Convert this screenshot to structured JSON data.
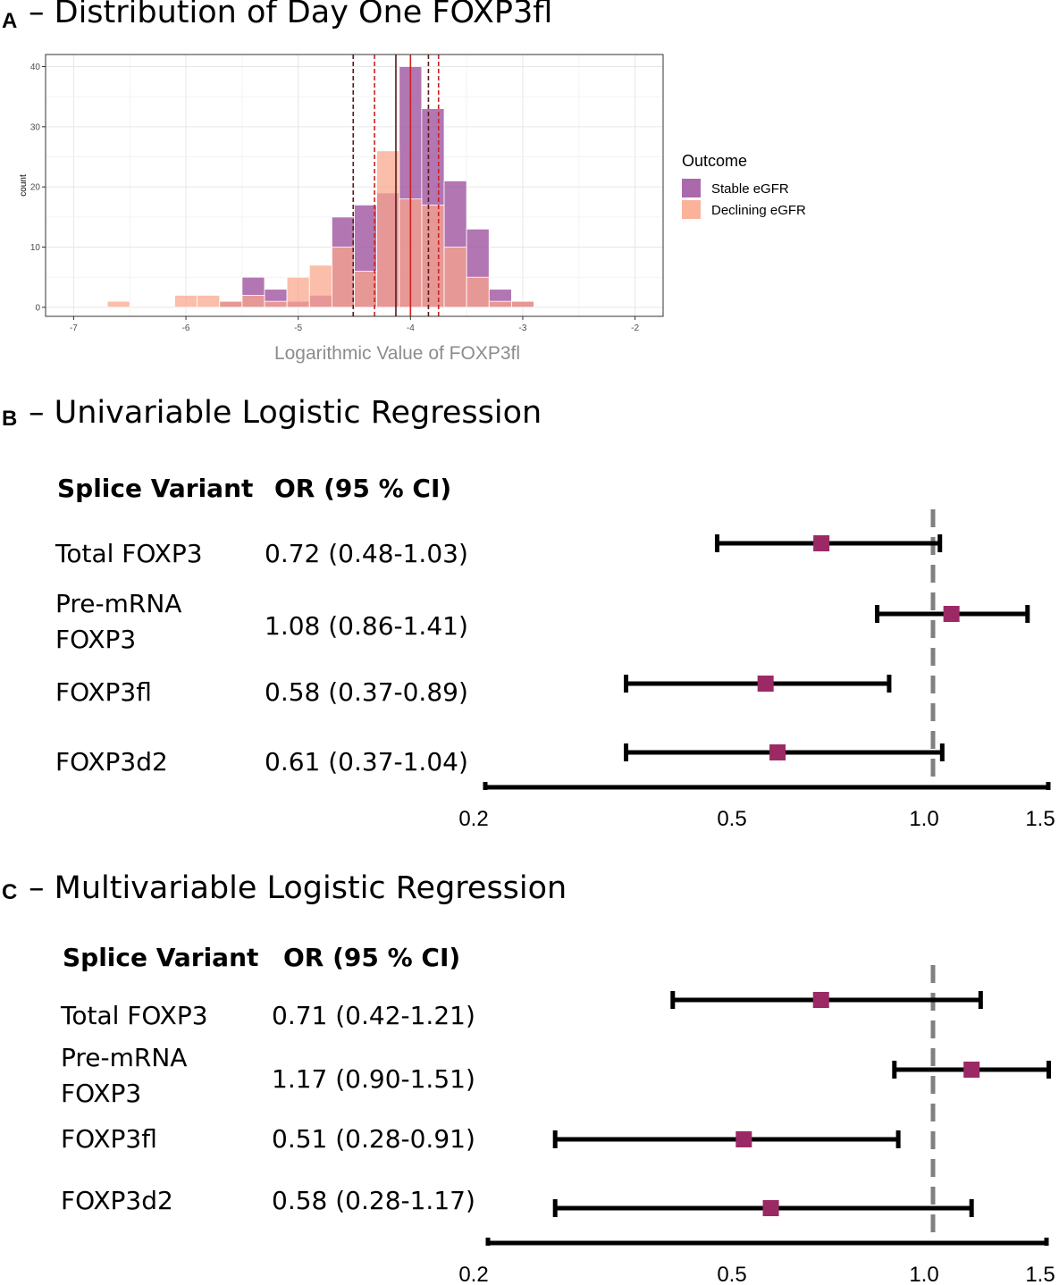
{
  "panel_a": {
    "letter": "A",
    "title": "– Distribution of Day One FOXP3fl"
  },
  "panel_b": {
    "letter": "B",
    "title": "– Univariable Logistic Regression",
    "header_variant": "Splice Variant",
    "header_or": "OR (95 % CI)"
  },
  "panel_c": {
    "letter": "C",
    "title": "– Multivariable Logistic Regression",
    "header_variant": "Splice Variant",
    "header_or": "OR (95 % CI)"
  },
  "colors": {
    "stable": "#9c4f9c",
    "declining": "#f9a58a",
    "overlap": "#e07a6f",
    "marker": "#9b2a64",
    "ref_line": "#808080"
  },
  "chart_data": [
    {
      "type": "histogram",
      "title": "– Distribution of Day One FOXP3fl",
      "xlabel": "Logarithmic Value of FOXP3fl",
      "ylabel": "count",
      "xlim": [
        -7.25,
        -1.75
      ],
      "ylim": [
        -1.5,
        42
      ],
      "xticks": [
        -7,
        -6,
        -5,
        -4,
        -3,
        -2
      ],
      "xtick_labels": [
        "-7",
        "-6",
        "-5",
        "-4",
        "-3",
        "-2"
      ],
      "yticks": [
        0,
        10,
        20,
        30,
        40
      ],
      "ytick_labels": [
        "0",
        "10",
        "20",
        "30",
        "40"
      ],
      "grid": true,
      "legend": {
        "title": "Outcome",
        "position": "right",
        "entries": [
          "Stable eGFR",
          "Declining eGFR"
        ]
      },
      "bin_width": 0.2,
      "bin_starts": [
        -6.7,
        -6.5,
        -6.3,
        -6.1,
        -5.9,
        -5.7,
        -5.5,
        -5.3,
        -5.1,
        -4.9,
        -4.7,
        -4.5,
        -4.3,
        -4.1,
        -3.9,
        -3.7,
        -3.5,
        -3.3,
        -3.1
      ],
      "series": [
        {
          "name": "Stable eGFR",
          "values": [
            0,
            0,
            0,
            0,
            0,
            1,
            5,
            3,
            1,
            2,
            15,
            17,
            19,
            40,
            33,
            21,
            13,
            3,
            1
          ]
        },
        {
          "name": "Declining eGFR",
          "values": [
            1,
            0,
            0,
            2,
            2,
            1,
            2,
            1,
            5,
            7,
            10,
            6,
            26,
            18,
            17,
            10,
            5,
            1,
            1
          ]
        }
      ],
      "vlines": [
        {
          "x": -4.51,
          "style": "dashed",
          "color": "#5a1a1a"
        },
        {
          "x": -4.32,
          "style": "dashed",
          "color": "#cc2222"
        },
        {
          "x": -4.13,
          "style": "solid",
          "color": "#5a1a1a"
        },
        {
          "x": -4.0,
          "style": "solid",
          "color": "#cc2222"
        },
        {
          "x": -3.84,
          "style": "dashed",
          "color": "#5a1a1a"
        },
        {
          "x": -3.75,
          "style": "dashed",
          "color": "#cc2222"
        }
      ]
    },
    {
      "type": "forest",
      "title": "– Univariable Logistic Regression",
      "xticks": [
        0.2,
        0.5,
        1.0,
        1.5
      ],
      "xtick_labels": [
        "0.2",
        "0.5",
        "1.0",
        "1.5"
      ],
      "reference": 1.0,
      "rows": [
        {
          "variant": "Total FOXP3",
          "or_text": "0.72 (0.48-1.03)",
          "or": 0.72,
          "lo": 0.48,
          "hi": 1.03
        },
        {
          "variant": "Pre-mRNA\nFOXP3",
          "or_text": "1.08 (0.86-1.41)",
          "or": 1.08,
          "lo": 0.86,
          "hi": 1.41
        },
        {
          "variant": "FOXP3fl",
          "or_text": "0.58 (0.37-0.89)",
          "or": 0.58,
          "lo": 0.37,
          "hi": 0.89
        },
        {
          "variant": "FOXP3d2",
          "or_text": "0.61 (0.37-1.04)",
          "or": 0.61,
          "lo": 0.37,
          "hi": 1.04
        }
      ]
    },
    {
      "type": "forest",
      "title": "– Multivariable Logistic Regression",
      "xticks": [
        0.2,
        0.5,
        1.0,
        1.5
      ],
      "xtick_labels": [
        "0.2",
        "0.5",
        "1.0",
        "1.5"
      ],
      "reference": 1.0,
      "rows": [
        {
          "variant": "Total FOXP3",
          "or_text": "0.71 (0.42-1.21)",
          "or": 0.71,
          "lo": 0.42,
          "hi": 1.21
        },
        {
          "variant": "Pre-mRNA\nFOXP3",
          "or_text": "1.17 (0.90-1.51)",
          "or": 1.17,
          "lo": 0.9,
          "hi": 1.51
        },
        {
          "variant": "FOXP3fl",
          "or_text": "0.51 (0.28-0.91)",
          "or": 0.51,
          "lo": 0.28,
          "hi": 0.91
        },
        {
          "variant": "FOXP3d2",
          "or_text": "0.58 (0.28-1.17)",
          "or": 0.58,
          "lo": 0.28,
          "hi": 1.17
        }
      ]
    }
  ]
}
